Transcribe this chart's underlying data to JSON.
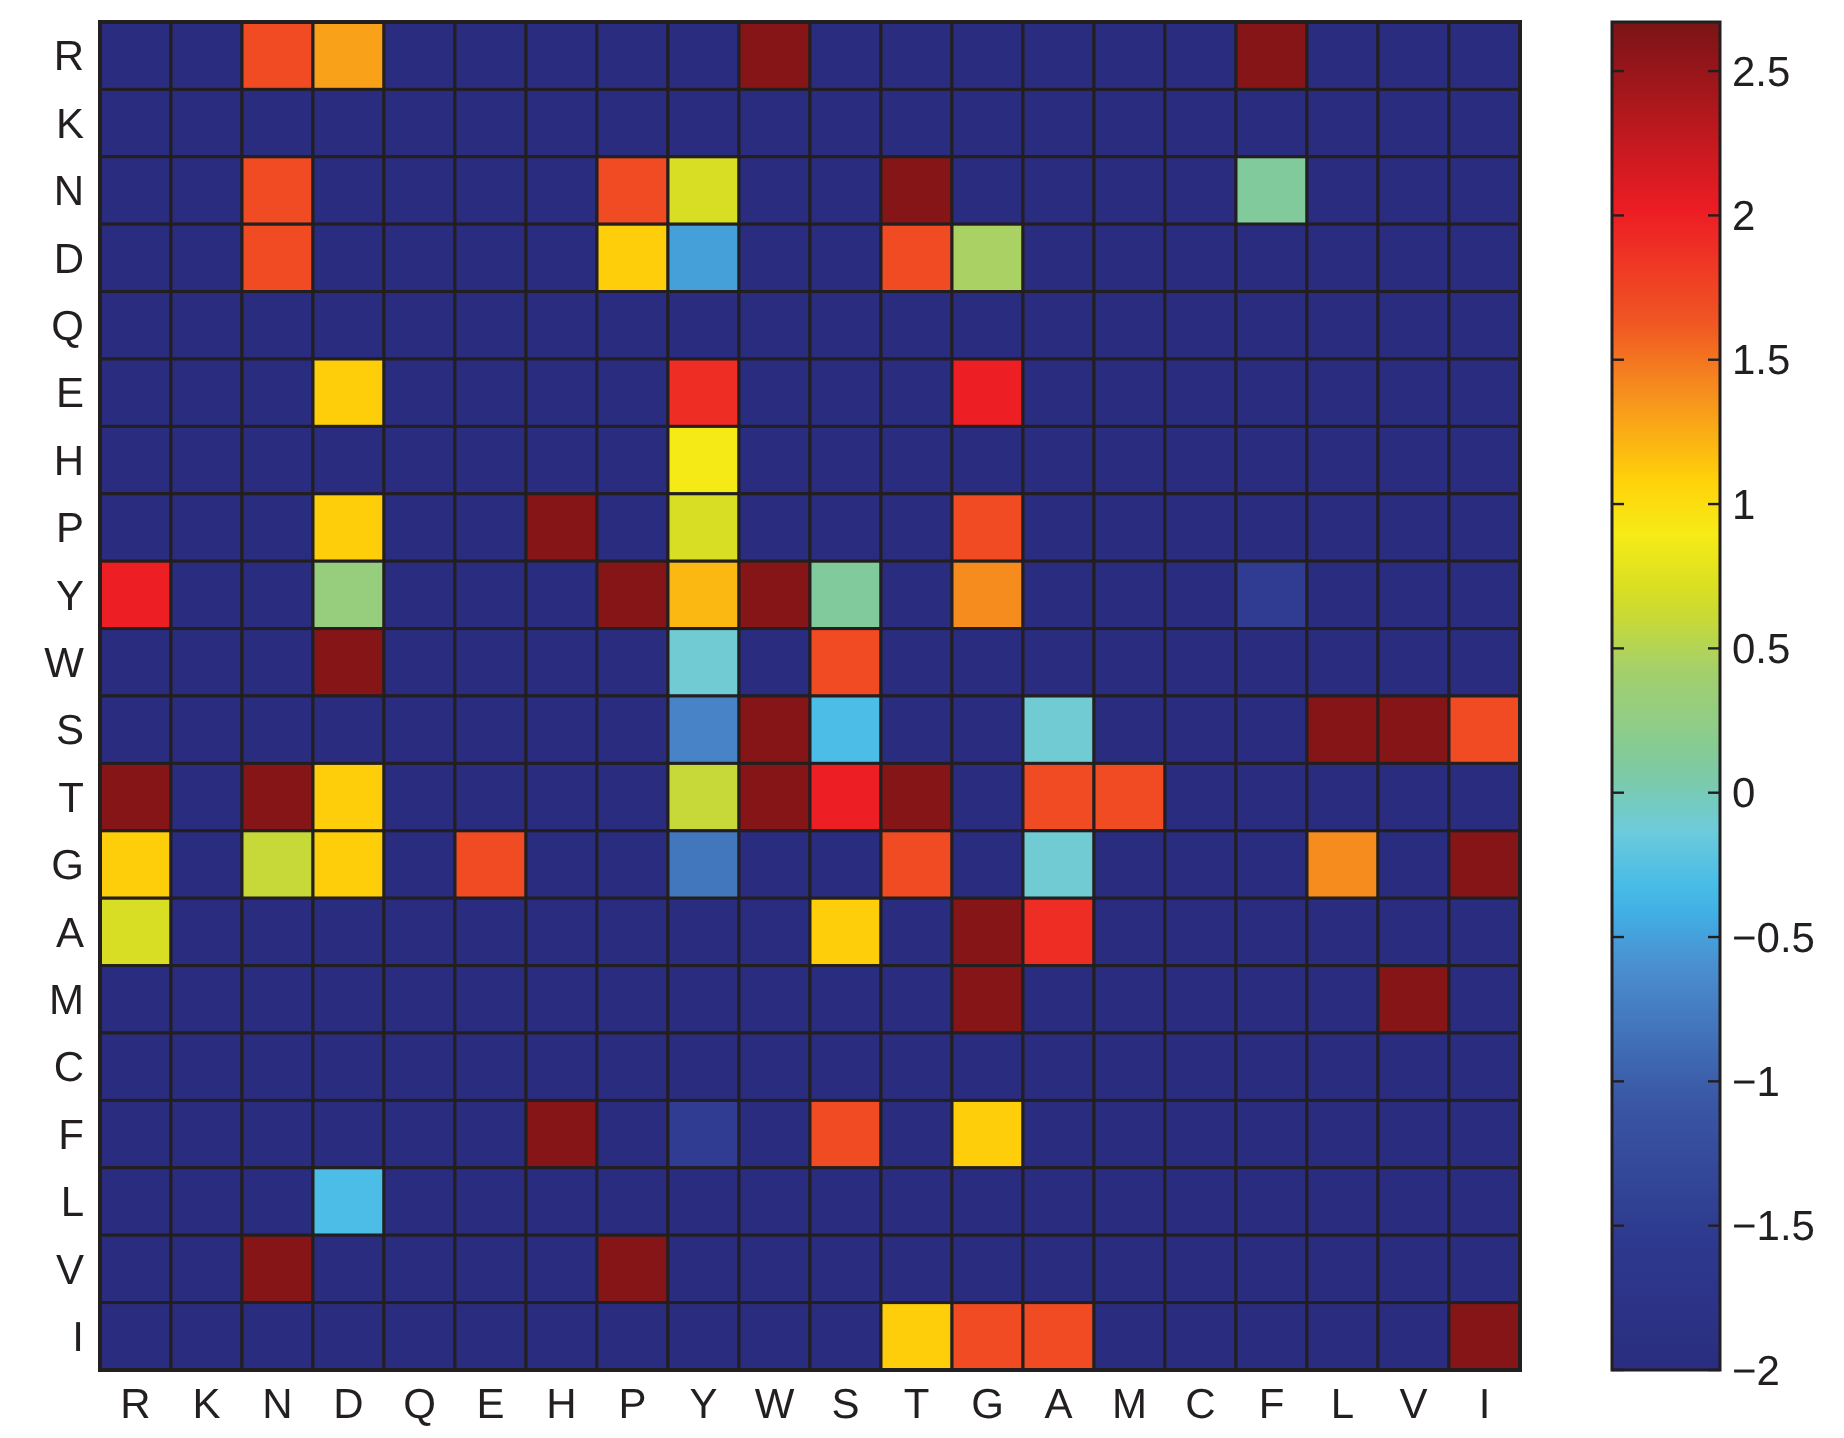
{
  "chart_data": {
    "type": "heatmap",
    "categories": [
      "R",
      "K",
      "N",
      "D",
      "Q",
      "E",
      "H",
      "P",
      "Y",
      "W",
      "S",
      "T",
      "G",
      "A",
      "M",
      "C",
      "F",
      "L",
      "V",
      "I"
    ],
    "y_categories": [
      "R",
      "K",
      "N",
      "D",
      "Q",
      "E",
      "H",
      "P",
      "Y",
      "W",
      "S",
      "T",
      "G",
      "A",
      "M",
      "C",
      "F",
      "L",
      "V",
      "I"
    ],
    "cells": [
      [
        -2,
        -2,
        1.7,
        1.3,
        -2,
        -2,
        -2,
        -2,
        -2,
        2.6,
        -2,
        -2,
        -2,
        -2,
        -2,
        -2,
        2.6,
        -2,
        -2,
        -2
      ],
      [
        -2,
        -2,
        -2,
        -2,
        -2,
        -2,
        -2,
        -2,
        -2,
        -2,
        -2,
        -2,
        -2,
        -2,
        -2,
        -2,
        -2,
        -2,
        -2,
        -2
      ],
      [
        -2,
        -2,
        1.7,
        -2,
        -2,
        -2,
        -2,
        1.7,
        0.7,
        -2,
        -2,
        2.6,
        -2,
        -2,
        -2,
        -2,
        0.1,
        -2,
        -2,
        -2
      ],
      [
        -2,
        -2,
        1.7,
        -2,
        -2,
        -2,
        -2,
        1.1,
        -0.5,
        -2,
        -2,
        1.7,
        0.45,
        -2,
        -2,
        -2,
        -2,
        -2,
        -2,
        -2
      ],
      [
        -2,
        -2,
        -2,
        -2,
        -2,
        -2,
        -2,
        -2,
        -2,
        -2,
        -2,
        -2,
        -2,
        -2,
        -2,
        -2,
        -2,
        -2,
        -2,
        -2
      ],
      [
        -2,
        -2,
        -2,
        1.1,
        -2,
        -2,
        -2,
        -2,
        1.9,
        -2,
        -2,
        -2,
        2,
        -2,
        -2,
        -2,
        -2,
        -2,
        -2,
        -2
      ],
      [
        -2,
        -2,
        -2,
        -2,
        -2,
        -2,
        -2,
        -2,
        0.9,
        -2,
        -2,
        -2,
        -2,
        -2,
        -2,
        -2,
        -2,
        -2,
        -2,
        -2
      ],
      [
        -2,
        -2,
        -2,
        1.1,
        -2,
        -2,
        2.6,
        -2,
        0.7,
        -2,
        -2,
        -2,
        1.7,
        -2,
        -2,
        -2,
        -2,
        -2,
        -2,
        -2
      ],
      [
        2,
        -2,
        -2,
        0.3,
        -2,
        -2,
        -2,
        2.6,
        1.2,
        2.6,
        0.1,
        -2,
        1.4,
        -2,
        -2,
        -2,
        -1.5,
        -2,
        -2,
        -2
      ],
      [
        -2,
        -2,
        -2,
        2.6,
        -2,
        -2,
        -2,
        -2,
        -0.1,
        -2,
        1.7,
        -2,
        -2,
        -2,
        -2,
        -2,
        -2,
        -2,
        -2,
        -2
      ],
      [
        -2,
        -2,
        -2,
        -2,
        -2,
        -2,
        -2,
        -2,
        -0.7,
        2.6,
        -0.3,
        -2,
        -2,
        -0.1,
        -2,
        -2,
        -2,
        2.6,
        2.6,
        1.7
      ],
      [
        2.6,
        -2,
        2.6,
        1.1,
        -2,
        -2,
        -2,
        -2,
        0.6,
        2.6,
        2,
        2.6,
        -2,
        1.7,
        1.7,
        -2,
        -2,
        -2,
        -2,
        -2
      ],
      [
        1.1,
        -2,
        0.6,
        1.1,
        -2,
        1.7,
        -2,
        -2,
        -0.8,
        -2,
        -2,
        1.7,
        -2,
        -0.1,
        -2,
        -2,
        -2,
        1.4,
        -2,
        2.6
      ],
      [
        0.7,
        -2,
        -2,
        -2,
        -2,
        -2,
        -2,
        -2,
        -2,
        -2,
        1.1,
        -2,
        2.6,
        1.9,
        -2,
        -2,
        -2,
        -2,
        -2,
        -2
      ],
      [
        -2,
        -2,
        -2,
        -2,
        -2,
        -2,
        -2,
        -2,
        -2,
        -2,
        -2,
        -2,
        2.6,
        -2,
        -2,
        -2,
        -2,
        -2,
        2.6,
        -2
      ],
      [
        -2,
        -2,
        -2,
        -2,
        -2,
        -2,
        -2,
        -2,
        -2,
        -2,
        -2,
        -2,
        -2,
        -2,
        -2,
        -2,
        -2,
        -2,
        -2,
        -2
      ],
      [
        -2,
        -2,
        -2,
        -2,
        -2,
        -2,
        2.6,
        -2,
        -1.5,
        -2,
        1.7,
        -2,
        1.1,
        -2,
        -2,
        -2,
        -2,
        -2,
        -2,
        -2
      ],
      [
        -2,
        -2,
        -2,
        -0.3,
        -2,
        -2,
        -2,
        -2,
        -2,
        -2,
        -2,
        -2,
        -2,
        -2,
        -2,
        -2,
        -2,
        -2,
        -2,
        -2
      ],
      [
        -2,
        -2,
        2.6,
        -2,
        -2,
        -2,
        -2,
        2.6,
        -2,
        -2,
        -2,
        -2,
        -2,
        -2,
        -2,
        -2,
        -2,
        -2,
        -2,
        -2
      ],
      [
        -2,
        -2,
        -2,
        -2,
        -2,
        -2,
        -2,
        -2,
        -2,
        -2,
        -2,
        1.1,
        1.7,
        1.7,
        -2,
        -2,
        -2,
        -2,
        -2,
        2.6
      ]
    ],
    "clim": [
      -2,
      2.67
    ],
    "cticks": [
      {
        "value": -2,
        "label": "−2"
      },
      {
        "value": -1.5,
        "label": "−1.5"
      },
      {
        "value": -1,
        "label": "−1"
      },
      {
        "value": -0.5,
        "label": "−0.5"
      },
      0,
      0.5,
      1,
      1.5,
      2,
      2.5
    ]
  }
}
